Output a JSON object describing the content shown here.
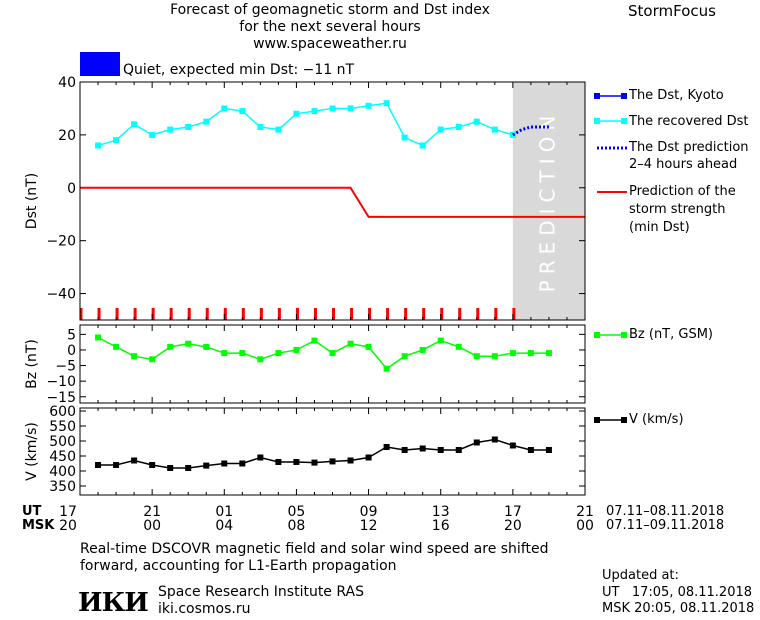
{
  "header": {
    "title_line1": "Forecast of geomagnetic storm and Dst index",
    "title_line2": "for the next several hours",
    "title_line3": "www.spaceweather.ru",
    "brand": "StormFocus"
  },
  "status": {
    "color": "#0000ff",
    "text": "Quiet, expected min Dst: −11 nT"
  },
  "legend": {
    "dst_kyoto": "The Dst, Kyoto",
    "recovered": "The recovered Dst",
    "prediction_line1": "The Dst prediction",
    "prediction_line2": "2–4 hours ahead",
    "storm_line1": "Prediction of the",
    "storm_line2": "storm strength",
    "storm_line3": "(min Dst)",
    "bz": "Bz (nT, GSM)",
    "v": "V (km/s)"
  },
  "prediction_band_label": "PREDICTION",
  "colors": {
    "dst_kyoto": "#0000ff",
    "recovered": "#00ffff",
    "prediction": "#0000ff",
    "storm": "#ff0000",
    "bz": "#00ff00",
    "v": "#000000",
    "band": "#d9d9d9"
  },
  "time_axis": {
    "ut_label": "UT",
    "msk_label": "MSK",
    "ut_ticks": [
      "17",
      "21",
      "01",
      "05",
      "09",
      "13",
      "17",
      "21"
    ],
    "msk_ticks": [
      "20",
      "00",
      "04",
      "08",
      "12",
      "16",
      "20",
      "00"
    ],
    "ut_range": "07.11–08.11.2018",
    "msk_range": "07.11–09.11.2018"
  },
  "chart_data": [
    {
      "type": "line",
      "ylabel": "Dst (nT)",
      "ylim": [
        -50,
        40
      ],
      "yticks": [
        40,
        20,
        0,
        -20,
        -40
      ],
      "xlim": [
        0,
        28
      ],
      "series": [
        {
          "name": "The recovered Dst",
          "x": [
            1,
            2,
            3,
            4,
            5,
            6,
            7,
            8,
            9,
            10,
            11,
            12,
            13,
            14,
            15,
            16,
            17,
            18,
            19,
            20,
            21,
            22,
            23,
            24
          ],
          "values": [
            16,
            18,
            24,
            20,
            22,
            23,
            25,
            30,
            29,
            23,
            22,
            28,
            29,
            30,
            30,
            31,
            32,
            19,
            16,
            22,
            23,
            25,
            22,
            20
          ]
        },
        {
          "name": "The Dst prediction 2–4 hours ahead",
          "x": [
            24,
            24.5,
            25,
            25.5,
            26
          ],
          "values": [
            20,
            22,
            23,
            23,
            23
          ]
        },
        {
          "name": "Prediction of the storm strength (min Dst)",
          "x": [
            0,
            15,
            16,
            28
          ],
          "values": [
            0,
            0,
            -11,
            -11
          ]
        }
      ],
      "prediction_band_x": [
        24,
        28
      ],
      "red_tick_x": [
        0,
        1,
        2,
        3,
        4,
        5,
        6,
        7,
        8,
        9,
        10,
        11,
        12,
        13,
        14,
        15,
        16,
        17,
        18,
        19,
        20,
        21,
        22,
        23,
        24
      ]
    },
    {
      "type": "line",
      "ylabel": "Bz (nT)",
      "ylim": [
        -17,
        8
      ],
      "yticks": [
        5,
        0,
        -5,
        -10,
        -15
      ],
      "xlim": [
        0,
        28
      ],
      "series": [
        {
          "name": "Bz (nT, GSM)",
          "x": [
            1,
            2,
            3,
            4,
            5,
            6,
            7,
            8,
            9,
            10,
            11,
            12,
            13,
            14,
            15,
            16,
            17,
            18,
            19,
            20,
            21,
            22,
            23,
            24,
            25,
            26
          ],
          "values": [
            4,
            1,
            -2,
            -3,
            1,
            2,
            1,
            -1,
            -1,
            -3,
            -1,
            0,
            3,
            -1,
            2,
            1,
            -6,
            -2,
            0,
            3,
            1,
            -2,
            -2,
            -1,
            -1,
            -1
          ]
        }
      ]
    },
    {
      "type": "line",
      "ylabel": "V (km/s)",
      "ylim": [
        320,
        610
      ],
      "yticks": [
        600,
        550,
        500,
        450,
        400,
        350
      ],
      "xlim": [
        0,
        28
      ],
      "series": [
        {
          "name": "V (km/s)",
          "x": [
            1,
            2,
            3,
            4,
            5,
            6,
            7,
            8,
            9,
            10,
            11,
            12,
            13,
            14,
            15,
            16,
            17,
            18,
            19,
            20,
            21,
            22,
            23,
            24,
            25,
            26
          ],
          "values": [
            420,
            420,
            435,
            420,
            410,
            410,
            418,
            425,
            425,
            445,
            430,
            430,
            428,
            432,
            435,
            445,
            480,
            470,
            475,
            470,
            470,
            495,
            505,
            485,
            470,
            470
          ]
        }
      ]
    }
  ],
  "footer": {
    "note_line1": "Real-time DSCOVR magnetic field and solar wind speed are shifted",
    "note_line2": "forward, accounting for L1-Earth propagation",
    "institute": "Space Research Institute RAS",
    "website": "iki.cosmos.ru",
    "logo_text": "ИКИ",
    "updated_label": "Updated at:",
    "updated_ut": "UT   17:05, 08.11.2018",
    "updated_msk": "MSK 20:05, 08.11.2018"
  }
}
